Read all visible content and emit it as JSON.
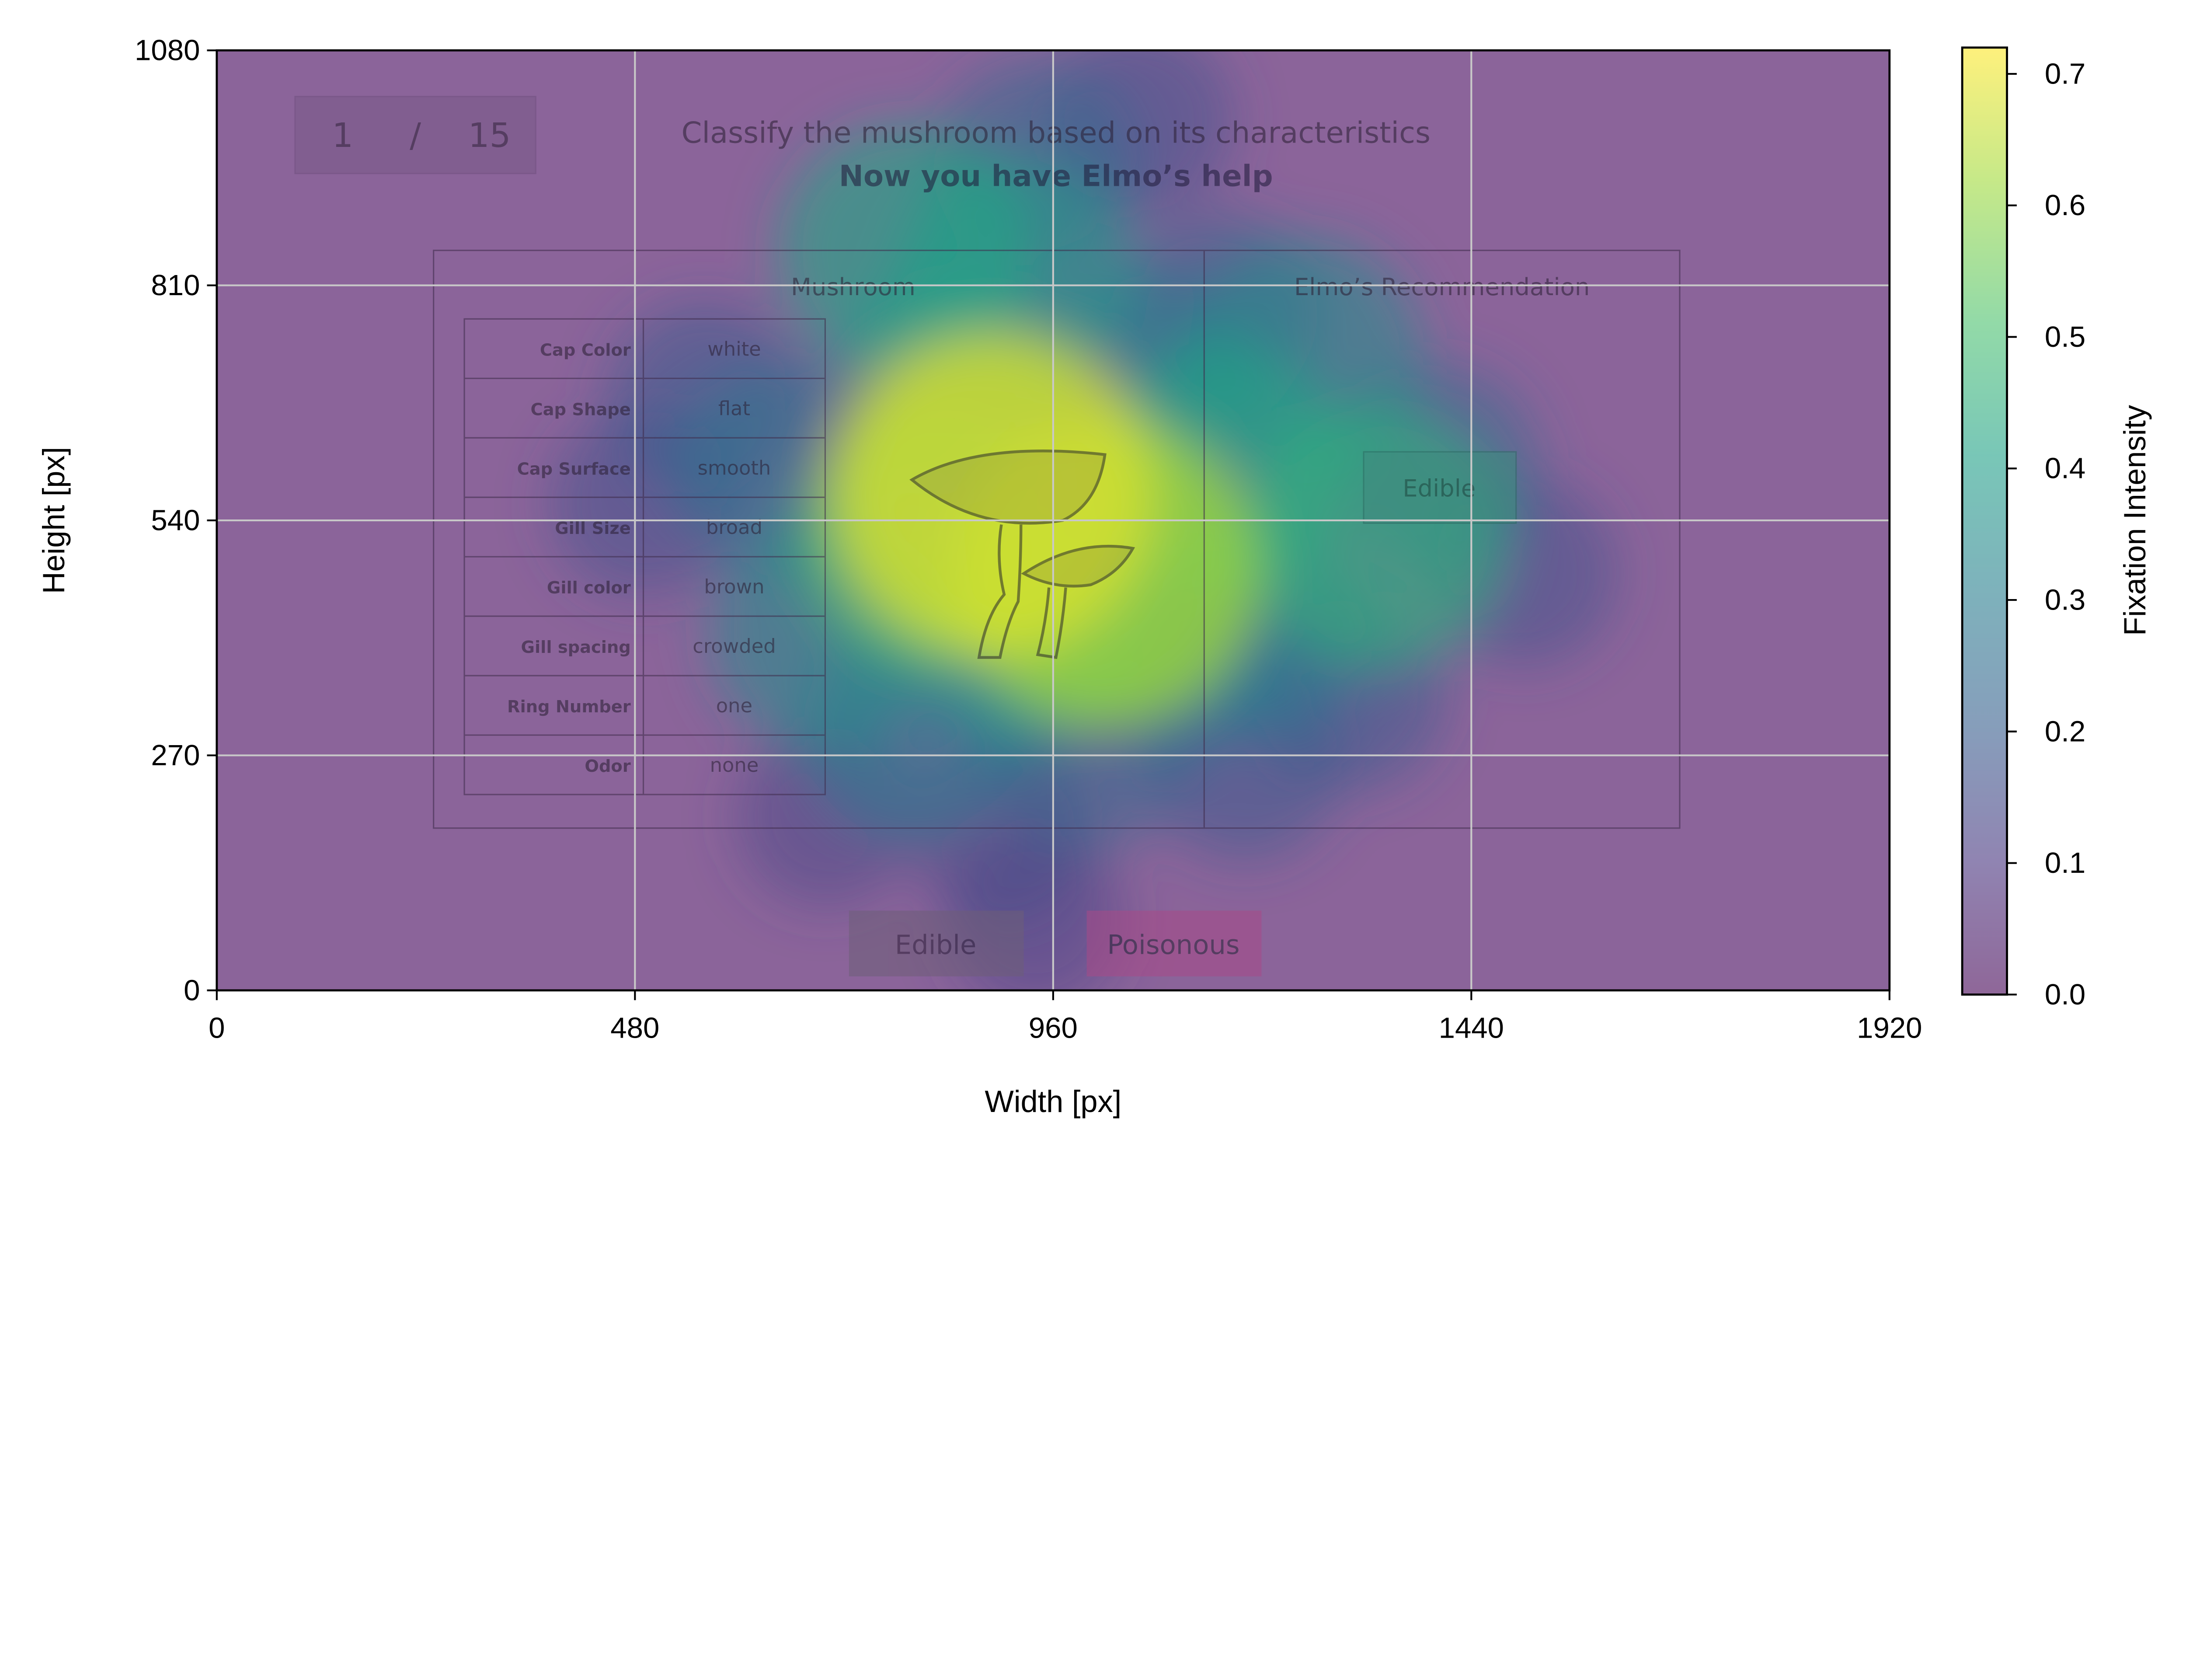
{
  "chart_data": {
    "type": "heatmap",
    "xlabel": "Width [px]",
    "ylabel": "Height [px]",
    "xlim": [
      0,
      1920
    ],
    "ylim": [
      0,
      1080
    ],
    "xticks": [
      0,
      480,
      960,
      1440,
      1920
    ],
    "yticks": [
      0,
      270,
      540,
      810,
      1080
    ],
    "grid": true,
    "colorbar": {
      "label": "Fixation Intensity",
      "range": [
        0,
        0.72
      ],
      "ticks": [
        "0.0",
        "0.1",
        "0.2",
        "0.3",
        "0.4",
        "0.5",
        "0.6",
        "0.7"
      ],
      "colormap": "viridis"
    },
    "fixation_peaks": [
      {
        "x": 890,
        "y": 570,
        "intensity": 0.68
      },
      {
        "x": 1020,
        "y": 480,
        "intensity": 0.62
      },
      {
        "x": 820,
        "y": 520,
        "intensity": 0.48
      },
      {
        "x": 1150,
        "y": 600,
        "intensity": 0.42
      },
      {
        "x": 1330,
        "y": 520,
        "intensity": 0.45
      },
      {
        "x": 790,
        "y": 850,
        "intensity": 0.42
      },
      {
        "x": 920,
        "y": 820,
        "intensity": 0.38
      },
      {
        "x": 850,
        "y": 700,
        "intensity": 0.35
      },
      {
        "x": 1060,
        "y": 700,
        "intensity": 0.3
      },
      {
        "x": 1250,
        "y": 730,
        "intensity": 0.35
      },
      {
        "x": 940,
        "y": 420,
        "intensity": 0.4
      },
      {
        "x": 700,
        "y": 410,
        "intensity": 0.35
      },
      {
        "x": 1100,
        "y": 400,
        "intensity": 0.3
      },
      {
        "x": 650,
        "y": 600,
        "intensity": 0.28
      },
      {
        "x": 1200,
        "y": 420,
        "intensity": 0.3
      },
      {
        "x": 940,
        "y": 950,
        "intensity": 0.25
      },
      {
        "x": 800,
        "y": 300,
        "intensity": 0.3
      },
      {
        "x": 1000,
        "y": 280,
        "intensity": 0.25
      },
      {
        "x": 1400,
        "y": 600,
        "intensity": 0.25
      },
      {
        "x": 1500,
        "y": 480,
        "intensity": 0.18
      },
      {
        "x": 560,
        "y": 680,
        "intensity": 0.2
      },
      {
        "x": 490,
        "y": 560,
        "intensity": 0.18
      },
      {
        "x": 1180,
        "y": 260,
        "intensity": 0.2
      },
      {
        "x": 900,
        "y": 180,
        "intensity": 0.15
      },
      {
        "x": 940,
        "y": 80,
        "intensity": 0.14
      },
      {
        "x": 1300,
        "y": 340,
        "intensity": 0.2
      },
      {
        "x": 1150,
        "y": 780,
        "intensity": 0.22
      },
      {
        "x": 700,
        "y": 200,
        "intensity": 0.15
      },
      {
        "x": 1060,
        "y": 1000,
        "intensity": 0.18
      }
    ]
  },
  "stimulus": {
    "counter": {
      "current": "1",
      "separator": "/",
      "total": "15"
    },
    "title": "Classify the mushroom based on its characteristics",
    "subtitle": "Now you have Elmo’s help",
    "left_panel_title": "Mushroom",
    "right_panel_title": "Elmo’s Recommendation",
    "recommendation": "Edible",
    "attributes": [
      {
        "label": "Cap Color",
        "value": "white"
      },
      {
        "label": "Cap Shape",
        "value": "flat"
      },
      {
        "label": "Cap Surface",
        "value": "smooth"
      },
      {
        "label": "Gill Size",
        "value": "broad"
      },
      {
        "label": "Gill color",
        "value": "brown"
      },
      {
        "label": "Gill spacing",
        "value": "crowded"
      },
      {
        "label": "Ring Number",
        "value": "one"
      },
      {
        "label": "Odor",
        "value": "none"
      }
    ],
    "buttons": {
      "edible": "Edible",
      "poisonous": "Poisonous"
    }
  },
  "colors": {
    "overlay_base": "#8b649a",
    "edible_button": "#6e5e78",
    "poisonous_button": "#a84a88",
    "recommendation_box": "#3f8a7e",
    "grid": "#c8c8c8"
  }
}
